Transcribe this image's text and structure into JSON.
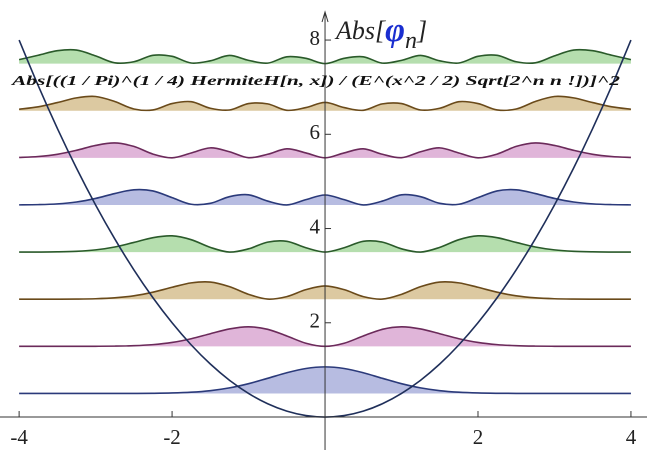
{
  "chart_data": {
    "type": "line",
    "annotation": "Abs[((1 / Pi)^(1 / 4) HermiteH[n, x]) / (E^(x^2 / 2) Sqrt[2^n n !])]^2",
    "ylabel": [
      "Abs[",
      "φ",
      "n",
      "]"
    ],
    "xlim": [
      -4.25,
      4.21
    ],
    "ylim": [
      -0.7,
      8.85
    ],
    "xticks": [
      -4,
      -2,
      2,
      4
    ],
    "yticks": [
      2,
      4,
      6,
      8
    ],
    "x": [
      -4,
      -3.75,
      -3.5,
      -3.25,
      -3,
      -2.75,
      -2.5,
      -2.25,
      -2,
      -1.75,
      -1.5,
      -1.25,
      -1,
      -0.75,
      -0.5,
      -0.25,
      0,
      0.25,
      0.5,
      0.75,
      1,
      1.25,
      1.5,
      1.75,
      2,
      2.25,
      2.5,
      2.75,
      3,
      3.25,
      3.5,
      3.75,
      4
    ],
    "potential": {
      "color": "#1f2f5a",
      "values": [
        8,
        7.03125,
        6.125,
        5.28125,
        4.5,
        3.78125,
        3.125,
        2.53125,
        2,
        1.53125,
        1.125,
        0.78125,
        0.5,
        0.28125,
        0.125,
        0.03125,
        0,
        0.03125,
        0.125,
        0.28125,
        0.5,
        0.78125,
        1.125,
        1.53125,
        2,
        2.53125,
        3.125,
        3.78125,
        4.5,
        5.28125,
        6.125,
        7.03125,
        8
      ]
    },
    "series": [
      {
        "baseline": 0.5,
        "color": "#aab0dc",
        "line_color": "#2b3a7a",
        "values": [
          0.5,
          0.5,
          0.5,
          0.5,
          0.5001,
          0.5003,
          0.5011,
          0.5036,
          0.5103,
          0.5264,
          0.5595,
          0.6183,
          0.7076,
          0.8215,
          0.9394,
          1.03,
          1.0642,
          1.03,
          0.9394,
          0.8215,
          0.7076,
          0.6183,
          0.5595,
          0.5264,
          0.5103,
          0.5036,
          0.5011,
          0.5003,
          0.5001,
          0.5,
          0.5,
          0.5,
          0.5
        ]
      },
      {
        "baseline": 1.5,
        "color": "#dba8d2",
        "line_color": "#6b2a5a",
        "values": [
          1.5,
          1.5,
          1.5001,
          1.5003,
          1.5013,
          1.5044,
          1.5136,
          1.5362,
          1.5827,
          1.6616,
          1.7676,
          1.8696,
          1.9151,
          1.8617,
          1.7197,
          1.5663,
          1.5,
          1.5663,
          1.7197,
          1.8617,
          1.9151,
          1.8696,
          1.7676,
          1.6616,
          1.5827,
          1.5362,
          1.5136,
          1.5044,
          1.5013,
          1.5003,
          1.5001,
          1.5,
          1.5
        ]
      },
      {
        "baseline": 2.5,
        "color": "#d6bf91",
        "line_color": "#6a4a1a",
        "values": [
          2.5,
          2.5002,
          2.5008,
          2.503,
          2.5101,
          2.5292,
          2.572,
          2.6487,
          2.7532,
          2.8466,
          2.8642,
          2.767,
          2.6038,
          2.5025,
          2.5549,
          2.7029,
          2.7821,
          2.7029,
          2.5549,
          2.5025,
          2.6038,
          2.767,
          2.8642,
          2.8466,
          2.7532,
          2.6487,
          2.572,
          2.5292,
          2.5101,
          2.503,
          2.5008,
          2.5002,
          2.5
        ]
      },
      {
        "baseline": 3.5,
        "color": "#a8d8a0",
        "line_color": "#2a5a2a",
        "values": [
          3.5003,
          3.5013,
          3.5051,
          3.5169,
          3.547,
          3.6086,
          3.7048,
          3.8061,
          3.8445,
          3.7631,
          3.6004,
          3.501,
          3.5692,
          3.7119,
          3.7289,
          3.5913,
          3.5,
          3.5913,
          3.7289,
          3.7119,
          3.5692,
          3.501,
          3.6004,
          3.7631,
          3.8445,
          3.8061,
          3.7048,
          3.6086,
          3.547,
          3.5169,
          3.5051,
          3.5013,
          3.5003
        ]
      },
      {
        "baseline": 4.5,
        "color": "#aab0dc",
        "line_color": "#2b3a7a",
        "values": [
          4.5019,
          4.5072,
          4.5234,
          4.5633,
          4.6391,
          4.7428,
          4.8221,
          4.7983,
          4.6555,
          4.5156,
          4.5348,
          4.6765,
          4.7162,
          4.5827,
          4.5011,
          4.6134,
          4.7116,
          4.6134,
          4.5011,
          4.5827,
          4.7162,
          4.6765,
          4.5348,
          4.5156,
          4.6555,
          4.7983,
          4.8221,
          4.7428,
          4.6391,
          4.5633,
          4.5234,
          4.5072,
          4.5019
        ]
      },
      {
        "baseline": 5.5,
        "color": "#dba8d2",
        "line_color": "#6b2a5a",
        "values": [
          5.5088,
          5.5285,
          5.5756,
          5.6606,
          5.764,
          5.8162,
          5.7427,
          5.5798,
          5.5007,
          5.6028,
          5.712,
          5.6295,
          5.5035,
          5.5758,
          5.6923,
          5.6046,
          5.5,
          5.6046,
          5.6923,
          5.5758,
          5.5035,
          5.6295,
          5.712,
          5.6028,
          5.5007,
          5.5798,
          5.7427,
          5.8162,
          5.764,
          5.6606,
          5.5756,
          5.5285,
          5.5088
        ]
      },
      {
        "baseline": 6.5,
        "color": "#d6bf91",
        "line_color": "#6a4a1a",
        "values": [
          6.5313,
          6.5828,
          6.6729,
          6.7729,
          6.8019,
          6.6962,
          6.5372,
          6.5174,
          6.6523,
          6.6917,
          6.5521,
          6.5153,
          6.6525,
          6.6457,
          6.5092,
          6.5679,
          6.6763,
          6.5679,
          6.5092,
          6.6457,
          6.6525,
          6.5153,
          6.5521,
          6.6917,
          6.6523,
          6.5174,
          6.5372,
          6.6962,
          6.8019,
          6.7729,
          6.6729,
          6.5828,
          6.5313
        ]
      },
      {
        "baseline": 7.5,
        "color": "#a8d8a0",
        "line_color": "#2a5a2a",
        "values": [
          7.5851,
          7.677,
          7.7739,
          7.7878,
          7.6644,
          7.517,
          7.5393,
          7.6763,
          7.6544,
          7.5127,
          7.5591,
          7.673,
          7.5693,
          7.5104,
          7.6448,
          7.6118,
          7.5,
          7.6118,
          7.6448,
          7.5104,
          7.5693,
          7.673,
          7.5591,
          7.5127,
          7.6544,
          7.6763,
          7.5393,
          7.517,
          7.6644,
          7.7878,
          7.7739,
          7.677,
          7.5851
        ]
      }
    ]
  }
}
